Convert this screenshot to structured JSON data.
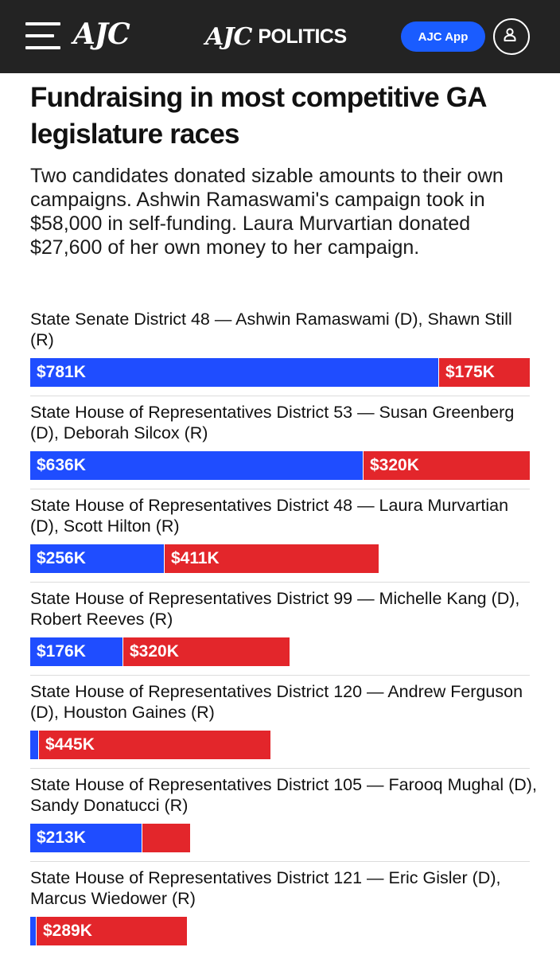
{
  "header": {
    "logo": "AJC",
    "brand_mark": "AJC",
    "brand_word": "POLITICS",
    "app_button": "AJC App"
  },
  "headline": "Fundraising in most competitive GA legislature races",
  "subhead": "Two candidates donated sizable amounts to their own campaigns. Ashwin Ramaswami's campaign took in $58,000 in self-funding. Laura Murvartian donated $27,600 of her own money to her campaign.",
  "colors": {
    "democrat": "#1f4dff",
    "republican": "#e3262b",
    "header_bg": "#232323",
    "app_button": "#1a5cff"
  },
  "chart_data": {
    "type": "bar",
    "orientation": "horizontal",
    "stacked": true,
    "unit": "USD thousands",
    "categories": [
      "State Senate District 48 — Ashwin Ramaswami (D), Shawn Still (R)",
      "State House of Representatives District 53 — Susan Greenberg (D), Deborah Silcox (R)",
      "State House of Representatives District 48 — Laura Murvartian (D), Scott Hilton (R)",
      "State House of Representatives District 99 — Michelle Kang (D), Robert Reeves (R)",
      "State House of Representatives District 120 — Andrew Ferguson (D), Houston Gaines (R)",
      "State House of Representatives District 105 — Farooq Mughal (D), Sandy Donatucci (R)",
      "State House of Representatives District 121 — Eric Gisler (D), Marcus Wiedower (R)"
    ],
    "series": [
      {
        "values": [
          781,
          636,
          256,
          176,
          15,
          213,
          11
        ],
        "labels": [
          "$781K",
          "$636K",
          "$256K",
          "$176K",
          "",
          "$213K",
          ""
        ]
      },
      {
        "values": [
          175,
          320,
          411,
          320,
          445,
          93,
          289
        ],
        "labels": [
          "$175K",
          "$320K",
          "$411K",
          "$320K",
          "$445K",
          "",
          "$289K"
        ]
      }
    ],
    "xlim": [
      0,
      956
    ],
    "grid": false,
    "legend": "none"
  }
}
